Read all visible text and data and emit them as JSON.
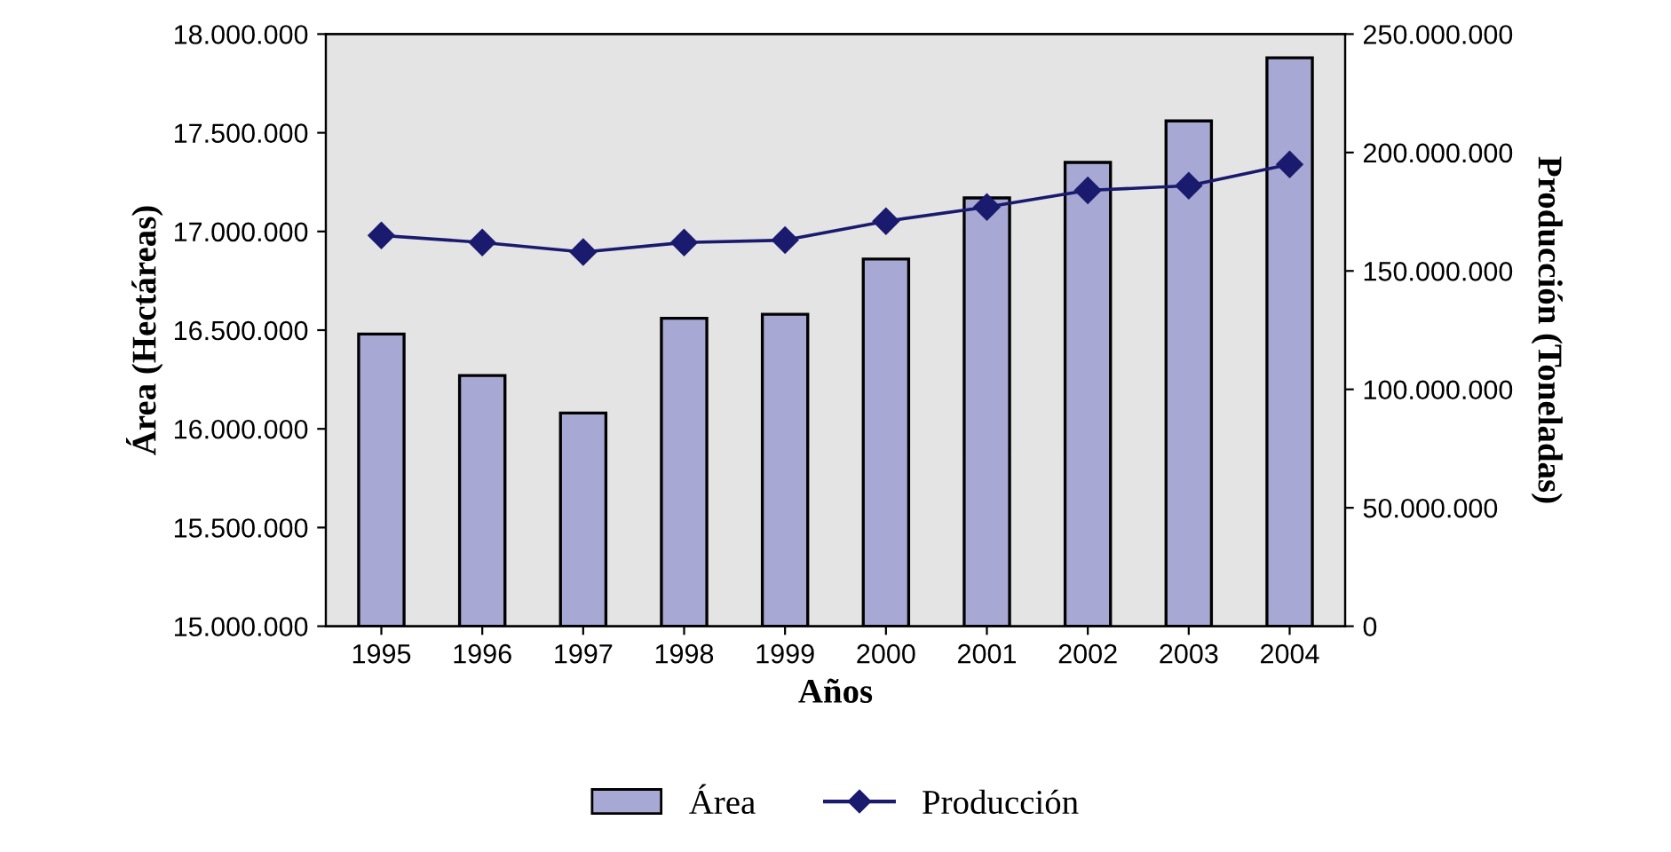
{
  "chart_data": {
    "type": "bar",
    "xlabel": "Años",
    "ylabel": "Área (Hectáreas)",
    "y2label": "Producción (Toneladas)",
    "categories": [
      "1995",
      "1996",
      "1997",
      "1998",
      "1999",
      "2000",
      "2001",
      "2002",
      "2003",
      "2004"
    ],
    "series": [
      {
        "name": "Área",
        "color": "#a8a8d4",
        "values": [
          16480000,
          16270000,
          16080000,
          16560000,
          16580000,
          16860000,
          17170000,
          17350000,
          17560000,
          17880000
        ]
      },
      {
        "name": "Producción",
        "type": "line",
        "axis": "y2",
        "color": "#1a1a6e",
        "marker": "diamond",
        "values": [
          165000000,
          162000000,
          158000000,
          162000000,
          163000000,
          171000000,
          177000000,
          184000000,
          186000000,
          195000000
        ]
      }
    ],
    "ylim": [
      15000000,
      18000000
    ],
    "yticks": [
      {
        "value": 15000000,
        "label": "15.000.000"
      },
      {
        "value": 15500000,
        "label": "15.500.000"
      },
      {
        "value": 16000000,
        "label": "16.000.000"
      },
      {
        "value": 16500000,
        "label": "16.500.000"
      },
      {
        "value": 17000000,
        "label": "17.000.000"
      },
      {
        "value": 17500000,
        "label": "17.500.000"
      },
      {
        "value": 18000000,
        "label": "18.000.000"
      }
    ],
    "y2lim": [
      0,
      250000000
    ],
    "y2ticks": [
      0,
      {
        "value": 50000000,
        "label": "50.000.000"
      },
      {
        "value": 100000000,
        "label": "100.000.000"
      },
      {
        "value": 150000000,
        "label": "150.000.000"
      },
      {
        "value": 200000000,
        "label": "200.000.000"
      },
      {
        "value": 250000000,
        "label": "250.000.000"
      }
    ],
    "grid": false,
    "legend": "bottom"
  }
}
